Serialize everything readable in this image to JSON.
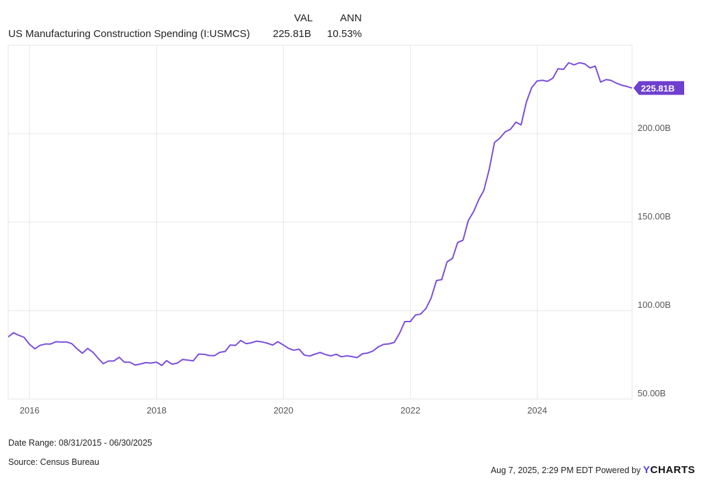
{
  "legend": {
    "header_val": "VAL",
    "header_ann": "ANN",
    "series_name": "US Manufacturing Construction Spending (I:USMCS)",
    "value": "225.81B",
    "annual": "10.53%"
  },
  "footer": {
    "date_range": "Date Range: 08/31/2015 - 06/30/2025",
    "source": "Source: Census Bureau",
    "timestamp": "Aug 7, 2025, 2:29 PM EDT Powered by",
    "brand": "YCHARTS"
  },
  "colors": {
    "line": "#7b4ddb",
    "grid": "#e6e6e6",
    "axis_text": "#555555",
    "badge": "#6f3fcf"
  },
  "chart_data": {
    "type": "line",
    "title": "",
    "xlabel": "",
    "ylabel": "",
    "y_unit": "B",
    "ylim": [
      50,
      250
    ],
    "yticks": [
      50,
      100,
      150,
      200
    ],
    "ytick_labels": [
      "50.00B",
      "100.00B",
      "150.00B",
      "200.00B"
    ],
    "xlim": [
      "2015-08-31",
      "2025-06-30"
    ],
    "xticks": [
      "2016-01-01",
      "2018-01-01",
      "2020-01-01",
      "2022-01-01",
      "2024-01-01"
    ],
    "xtick_labels": [
      "2016",
      "2018",
      "2020",
      "2022",
      "2024"
    ],
    "grid": true,
    "last_value_label": "225.81B",
    "series": [
      {
        "name": "US Manufacturing Construction Spending (I:USMCS)",
        "x": [
          "2015-08",
          "2015-09",
          "2015-10",
          "2015-11",
          "2015-12",
          "2016-01",
          "2016-02",
          "2016-03",
          "2016-04",
          "2016-05",
          "2016-06",
          "2016-07",
          "2016-08",
          "2016-09",
          "2016-10",
          "2016-11",
          "2016-12",
          "2017-01",
          "2017-02",
          "2017-03",
          "2017-04",
          "2017-05",
          "2017-06",
          "2017-07",
          "2017-08",
          "2017-09",
          "2017-10",
          "2017-11",
          "2017-12",
          "2018-01",
          "2018-02",
          "2018-03",
          "2018-04",
          "2018-05",
          "2018-06",
          "2018-07",
          "2018-08",
          "2018-09",
          "2018-10",
          "2018-11",
          "2018-12",
          "2019-01",
          "2019-02",
          "2019-03",
          "2019-04",
          "2019-05",
          "2019-06",
          "2019-07",
          "2019-08",
          "2019-09",
          "2019-10",
          "2019-11",
          "2019-12",
          "2020-01",
          "2020-02",
          "2020-03",
          "2020-04",
          "2020-05",
          "2020-06",
          "2020-07",
          "2020-08",
          "2020-09",
          "2020-10",
          "2020-11",
          "2020-12",
          "2021-01",
          "2021-02",
          "2021-03",
          "2021-04",
          "2021-05",
          "2021-06",
          "2021-07",
          "2021-08",
          "2021-09",
          "2021-10",
          "2021-11",
          "2021-12",
          "2022-01",
          "2022-02",
          "2022-03",
          "2022-04",
          "2022-05",
          "2022-06",
          "2022-07",
          "2022-08",
          "2022-09",
          "2022-10",
          "2022-11",
          "2022-12",
          "2023-01",
          "2023-02",
          "2023-03",
          "2023-04",
          "2023-05",
          "2023-06",
          "2023-07",
          "2023-08",
          "2023-09",
          "2023-10",
          "2023-11",
          "2023-12",
          "2024-01",
          "2024-02",
          "2024-03",
          "2024-04",
          "2024-05",
          "2024-06",
          "2024-07",
          "2024-08",
          "2024-09",
          "2024-10",
          "2024-11",
          "2024-12",
          "2025-01",
          "2025-02",
          "2025-03",
          "2025-04",
          "2025-05",
          "2025-06"
        ],
        "y": [
          85.1,
          87.5,
          86.0,
          84.9,
          81.0,
          78.4,
          80.3,
          81.1,
          81.1,
          82.4,
          82.2,
          82.3,
          81.3,
          78.4,
          75.9,
          78.6,
          76.4,
          72.9,
          70.0,
          71.5,
          71.5,
          73.6,
          70.8,
          70.8,
          69.2,
          69.8,
          70.6,
          70.3,
          70.9,
          69.0,
          71.7,
          69.7,
          70.3,
          72.4,
          72.0,
          71.6,
          75.4,
          75.3,
          74.6,
          74.5,
          76.4,
          76.9,
          80.5,
          80.3,
          83.1,
          81.3,
          81.8,
          82.7,
          82.3,
          81.6,
          80.5,
          82.4,
          80.6,
          78.6,
          77.6,
          78.2,
          74.9,
          74.3,
          75.4,
          76.3,
          75.1,
          74.4,
          75.3,
          73.9,
          74.4,
          74.0,
          73.4,
          75.6,
          76.0,
          77.2,
          79.5,
          80.9,
          81.2,
          82.0,
          87.2,
          93.8,
          93.8,
          97.5,
          98.0,
          101.1,
          107.0,
          117.0,
          117.5,
          127.5,
          129.5,
          138.5,
          139.8,
          150.8,
          156.0,
          163.0,
          168.0,
          180.0,
          195.0,
          197.5,
          201.0,
          202.5,
          206.5,
          205.0,
          218.0,
          226.0,
          229.8,
          230.2,
          229.6,
          231.4,
          236.7,
          236.3,
          240.1,
          238.9,
          240.1,
          239.5,
          237.2,
          238.2,
          229.2,
          230.6,
          230.2,
          228.6,
          227.5,
          226.7,
          225.8
        ]
      }
    ]
  }
}
